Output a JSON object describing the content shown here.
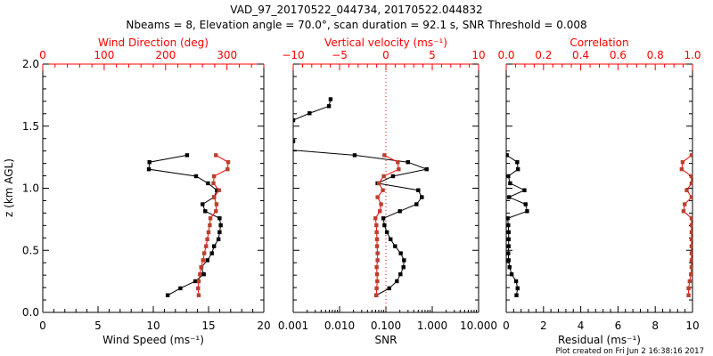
{
  "title": {
    "line1": "VAD_97_20170522_044734, 20170522.044832",
    "line2": "Nbeams = 8, Elevation angle = 70.0°, scan duration = 92.1 s, SNR Threshold = 0.008"
  },
  "footer": "Plot created on Fri Jun  2 16:38:16 2017",
  "colors": {
    "black": "#000000",
    "red_line": "#ff0000",
    "red_marker": "#b8402c"
  },
  "chart_data": [
    {
      "type": "line",
      "ylabel": "z (km AGL)",
      "ylim": [
        0,
        2
      ],
      "yticks": [
        "0.0",
        "0.5",
        "1.0",
        "1.5",
        "2.0"
      ],
      "bottom": {
        "label": "Wind Speed (ms⁻¹)",
        "lim": [
          0,
          20
        ],
        "scale": "linear",
        "ticks": [
          "0",
          "5",
          "10",
          "15",
          "20"
        ]
      },
      "top": {
        "label": "Wind Direction (deg)",
        "lim": [
          0,
          360
        ],
        "scale": "linear",
        "ticks": [
          "0",
          "100",
          "200",
          "300"
        ]
      },
      "z": [
        0.138,
        0.194,
        0.251,
        0.307,
        0.364,
        0.42,
        0.476,
        0.533,
        0.589,
        0.646,
        0.702,
        0.758,
        0.815,
        0.871,
        0.928,
        0.984,
        1.04,
        1.097,
        1.153,
        1.21,
        1.266
      ],
      "series": [
        {
          "name": "Wind Speed",
          "axis": "bottom",
          "color": "black",
          "values": [
            11.3,
            12.45,
            13.8,
            14.57,
            14.35,
            14.9,
            15.3,
            15.5,
            15.9,
            16.0,
            16.1,
            16.0,
            14.7,
            14.46,
            15.5,
            15.75,
            14.95,
            13.87,
            9.6,
            9.65,
            13.06
          ]
        },
        {
          "name": "Wind Direction",
          "axis": "top",
          "color": "red",
          "values": [
            254,
            253,
            254,
            256,
            258,
            261,
            263,
            266,
            268,
            270,
            272,
            273,
            282,
            283,
            279,
            287,
            278,
            279,
            301,
            302,
            282
          ]
        }
      ]
    },
    {
      "type": "line",
      "ylim": [
        0,
        2
      ],
      "bottom": {
        "label": "SNR",
        "lim": [
          0.001,
          10
        ],
        "scale": "log",
        "ticks": [
          "0.001",
          "0.010",
          "0.100",
          "1.000",
          "10.000"
        ]
      },
      "top": {
        "label": "Vertical velocity (ms⁻¹)",
        "lim": [
          -10,
          10
        ],
        "scale": "linear",
        "ticks": [
          "−10",
          "−5",
          "0",
          "5",
          "10"
        ]
      },
      "reference_line": {
        "axis": "top",
        "value": 0,
        "style": "dotted"
      },
      "z": [
        0.138,
        0.194,
        0.251,
        0.307,
        0.364,
        0.42,
        0.476,
        0.533,
        0.589,
        0.646,
        0.702,
        0.758,
        0.815,
        0.871,
        0.928,
        0.984,
        1.04,
        1.097,
        1.153,
        1.21,
        1.266,
        1.322,
        1.379,
        1.435,
        1.492,
        1.548,
        1.604,
        1.661,
        1.717
      ],
      "series": [
        {
          "name": "SNR",
          "axis": "bottom",
          "color": "black",
          "values": [
            0.062,
            0.118,
            0.172,
            0.206,
            0.239,
            0.246,
            0.209,
            0.158,
            0.126,
            0.105,
            0.093,
            0.088,
            0.2,
            0.457,
            0.596,
            0.499,
            0.066,
            0.142,
            0.757,
            0.299,
            0.0212,
            0.0003,
            0.001,
            0.0004,
            0.0004,
            0.001,
            0.00225,
            0.0059,
            0.0064
          ]
        },
        {
          "name": "Vertical velocity",
          "axis": "top",
          "color": "red",
          "values": [
            -1.03,
            -1.0,
            -0.93,
            -0.96,
            -1.0,
            -0.9,
            -0.9,
            -0.96,
            -0.96,
            -1.0,
            -1.03,
            -1.13,
            -0.65,
            -0.52,
            -0.9,
            -0.33,
            -0.77,
            -0.23,
            1.38,
            1.28,
            -0.16
          ]
        }
      ]
    },
    {
      "type": "line",
      "ylim": [
        0,
        2
      ],
      "bottom": {
        "label": "Residual (ms⁻¹)",
        "lim": [
          0,
          10
        ],
        "scale": "linear",
        "ticks": [
          "0",
          "2",
          "4",
          "6",
          "8",
          "10"
        ]
      },
      "top": {
        "label": "Correlation",
        "lim": [
          0,
          1
        ],
        "scale": "linear",
        "ticks": [
          "0.0",
          "0.2",
          "0.4",
          "0.6",
          "0.8",
          "1.0"
        ]
      },
      "z": [
        0.138,
        0.194,
        0.251,
        0.307,
        0.364,
        0.42,
        0.476,
        0.533,
        0.589,
        0.646,
        0.702,
        0.758,
        0.815,
        0.871,
        0.928,
        0.984,
        1.04,
        1.097,
        1.153,
        1.21,
        1.266
      ],
      "series": [
        {
          "name": "Residual",
          "axis": "bottom",
          "color": "black",
          "values": [
            0.55,
            0.61,
            0.53,
            0.29,
            0.18,
            0.13,
            0.11,
            0.13,
            0.13,
            0.13,
            0.11,
            0.08,
            1.12,
            1.04,
            0.15,
            0.98,
            0.21,
            0.11,
            0.63,
            0.59,
            0.03
          ]
        },
        {
          "name": "Correlation",
          "axis": "top",
          "color": "red",
          "values": [
            0.979,
            0.979,
            0.985,
            0.992,
            0.995,
            0.995,
            0.995,
            0.995,
            0.995,
            0.995,
            0.995,
            0.995,
            0.952,
            0.958,
            0.995,
            0.969,
            0.995,
            0.995,
            0.942,
            0.947,
            0.995
          ]
        }
      ]
    }
  ]
}
